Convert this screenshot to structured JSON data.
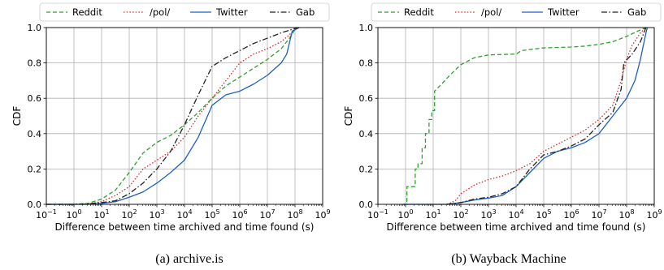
{
  "series_styles": [
    {
      "name": "Reddit",
      "color": "#2ca02c",
      "dash": "5,3"
    },
    {
      "name": "/pol/",
      "color": "#d62728",
      "dash": "1.5,2.2"
    },
    {
      "name": "Twitter",
      "color": "#1f5fbf",
      "dash": ""
    },
    {
      "name": "Gab",
      "color": "#222222",
      "dash": "7,2.5,1.5,2.5"
    }
  ],
  "chart_data": [
    {
      "type": "line",
      "caption": "(a)  archive.is",
      "xlabel": "Difference between time archived and time found (s)",
      "ylabel": "CDF",
      "xscale": "log10",
      "xlim": [
        -1,
        9
      ],
      "ylim": [
        0,
        1
      ],
      "xticks": [
        -1,
        0,
        1,
        2,
        3,
        4,
        5,
        6,
        7,
        8,
        9
      ],
      "yticks": [
        "0.0",
        "0.2",
        "0.4",
        "0.6",
        "0.8",
        "1.0"
      ],
      "grid": true,
      "legend": "top",
      "series": [
        {
          "name": "Reddit",
          "points": [
            [
              -1,
              0
            ],
            [
              0,
              0
            ],
            [
              0.5,
              0.005
            ],
            [
              1,
              0.03
            ],
            [
              1.5,
              0.08
            ],
            [
              2,
              0.18
            ],
            [
              2.5,
              0.29
            ],
            [
              3,
              0.35
            ],
            [
              3.5,
              0.39
            ],
            [
              4,
              0.45
            ],
            [
              4.5,
              0.52
            ],
            [
              5,
              0.6
            ],
            [
              5.5,
              0.67
            ],
            [
              6,
              0.72
            ],
            [
              6.5,
              0.77
            ],
            [
              7,
              0.82
            ],
            [
              7.5,
              0.88
            ],
            [
              7.8,
              0.94
            ],
            [
              8,
              0.99
            ],
            [
              8.15,
              1.0
            ]
          ]
        },
        {
          "name": "/pol/",
          "points": [
            [
              -1,
              0
            ],
            [
              0,
              0
            ],
            [
              0.5,
              0.003
            ],
            [
              1,
              0.015
            ],
            [
              1.5,
              0.05
            ],
            [
              2,
              0.1
            ],
            [
              2.5,
              0.2
            ],
            [
              3,
              0.25
            ],
            [
              3.5,
              0.3
            ],
            [
              4,
              0.38
            ],
            [
              4.5,
              0.5
            ],
            [
              5,
              0.6
            ],
            [
              5.5,
              0.7
            ],
            [
              6,
              0.8
            ],
            [
              6.5,
              0.85
            ],
            [
              7,
              0.88
            ],
            [
              7.5,
              0.92
            ],
            [
              7.8,
              0.96
            ],
            [
              8,
              0.99
            ],
            [
              8.15,
              1.0
            ]
          ]
        },
        {
          "name": "Twitter",
          "points": [
            [
              -1,
              0
            ],
            [
              0.5,
              0
            ],
            [
              1,
              0.005
            ],
            [
              1.5,
              0.015
            ],
            [
              2,
              0.04
            ],
            [
              2.5,
              0.07
            ],
            [
              3,
              0.12
            ],
            [
              3.5,
              0.18
            ],
            [
              4,
              0.25
            ],
            [
              4.5,
              0.38
            ],
            [
              5,
              0.56
            ],
            [
              5.5,
              0.62
            ],
            [
              6,
              0.64
            ],
            [
              6.5,
              0.68
            ],
            [
              7,
              0.73
            ],
            [
              7.5,
              0.8
            ],
            [
              7.7,
              0.85
            ],
            [
              7.9,
              0.98
            ],
            [
              8.15,
              1.0
            ]
          ]
        },
        {
          "name": "Gab",
          "points": [
            [
              -1,
              0
            ],
            [
              0,
              0
            ],
            [
              0.5,
              0.002
            ],
            [
              1,
              0.01
            ],
            [
              1.5,
              0.02
            ],
            [
              2,
              0.06
            ],
            [
              2.5,
              0.12
            ],
            [
              3,
              0.2
            ],
            [
              3.5,
              0.3
            ],
            [
              4,
              0.45
            ],
            [
              4.5,
              0.62
            ],
            [
              5,
              0.78
            ],
            [
              5.5,
              0.83
            ],
            [
              6,
              0.87
            ],
            [
              6.5,
              0.91
            ],
            [
              7,
              0.94
            ],
            [
              7.5,
              0.97
            ],
            [
              7.8,
              0.985
            ],
            [
              8,
              0.995
            ],
            [
              8.15,
              1.0
            ]
          ]
        }
      ]
    },
    {
      "type": "line",
      "caption": "(b)  Wayback Machine",
      "xlabel": "Difference between time archived and time found (s)",
      "ylabel": "CDF",
      "xscale": "log10",
      "xlim": [
        -1,
        9
      ],
      "ylim": [
        0,
        1
      ],
      "xticks": [
        -1,
        0,
        1,
        2,
        3,
        4,
        5,
        6,
        7,
        8,
        9
      ],
      "yticks": [
        "0.0",
        "0.2",
        "0.4",
        "0.6",
        "0.8",
        "1.0"
      ],
      "grid": true,
      "legend": "top",
      "series": [
        {
          "name": "Reddit",
          "points": [
            [
              -0.1,
              0
            ],
            [
              0.05,
              0
            ],
            [
              0.05,
              0.1
            ],
            [
              0.35,
              0.1
            ],
            [
              0.35,
              0.2
            ],
            [
              0.45,
              0.2
            ],
            [
              0.45,
              0.23
            ],
            [
              0.6,
              0.23
            ],
            [
              0.6,
              0.32
            ],
            [
              0.72,
              0.32
            ],
            [
              0.72,
              0.4
            ],
            [
              0.85,
              0.4
            ],
            [
              0.85,
              0.48
            ],
            [
              0.95,
              0.48
            ],
            [
              0.95,
              0.53
            ],
            [
              1.05,
              0.53
            ],
            [
              1.05,
              0.64
            ],
            [
              1.3,
              0.68
            ],
            [
              1.6,
              0.73
            ],
            [
              2,
              0.79
            ],
            [
              2.5,
              0.83
            ],
            [
              3,
              0.845
            ],
            [
              3.5,
              0.848
            ],
            [
              4,
              0.85
            ],
            [
              4.2,
              0.87
            ],
            [
              5,
              0.885
            ],
            [
              6,
              0.89
            ],
            [
              6.5,
              0.895
            ],
            [
              7,
              0.905
            ],
            [
              7.5,
              0.92
            ],
            [
              8,
              0.95
            ],
            [
              8.4,
              0.98
            ],
            [
              8.7,
              1.0
            ]
          ]
        },
        {
          "name": "/pol/",
          "points": [
            [
              1.5,
              0
            ],
            [
              1.8,
              0.02
            ],
            [
              2,
              0.06
            ],
            [
              2.5,
              0.11
            ],
            [
              3,
              0.14
            ],
            [
              3.5,
              0.16
            ],
            [
              4,
              0.19
            ],
            [
              4.5,
              0.23
            ],
            [
              5,
              0.3
            ],
            [
              5.5,
              0.34
            ],
            [
              6,
              0.38
            ],
            [
              6.5,
              0.42
            ],
            [
              7,
              0.48
            ],
            [
              7.5,
              0.56
            ],
            [
              7.8,
              0.7
            ],
            [
              8,
              0.82
            ],
            [
              8.2,
              0.9
            ],
            [
              8.5,
              0.97
            ],
            [
              8.7,
              1.0
            ]
          ]
        },
        {
          "name": "Twitter",
          "points": [
            [
              -0.1,
              0
            ],
            [
              1.5,
              0
            ],
            [
              2,
              0.01
            ],
            [
              2.5,
              0.025
            ],
            [
              3,
              0.035
            ],
            [
              3.5,
              0.05
            ],
            [
              4,
              0.1
            ],
            [
              4.5,
              0.18
            ],
            [
              5,
              0.26
            ],
            [
              5.5,
              0.3
            ],
            [
              6,
              0.32
            ],
            [
              6.5,
              0.35
            ],
            [
              7,
              0.4
            ],
            [
              7.5,
              0.5
            ],
            [
              8,
              0.6
            ],
            [
              8.3,
              0.7
            ],
            [
              8.5,
              0.82
            ],
            [
              8.7,
              0.97
            ],
            [
              8.75,
              1.0
            ]
          ]
        },
        {
          "name": "Gab",
          "points": [
            [
              1.5,
              0
            ],
            [
              2,
              0.01
            ],
            [
              2.5,
              0.03
            ],
            [
              3,
              0.04
            ],
            [
              3.5,
              0.06
            ],
            [
              4,
              0.1
            ],
            [
              4.5,
              0.2
            ],
            [
              5,
              0.28
            ],
            [
              5.5,
              0.3
            ],
            [
              6,
              0.33
            ],
            [
              6.5,
              0.37
            ],
            [
              7,
              0.45
            ],
            [
              7.5,
              0.52
            ],
            [
              7.8,
              0.65
            ],
            [
              7.9,
              0.8
            ],
            [
              8.2,
              0.85
            ],
            [
              8.5,
              0.92
            ],
            [
              8.7,
              1.0
            ]
          ]
        }
      ]
    }
  ]
}
